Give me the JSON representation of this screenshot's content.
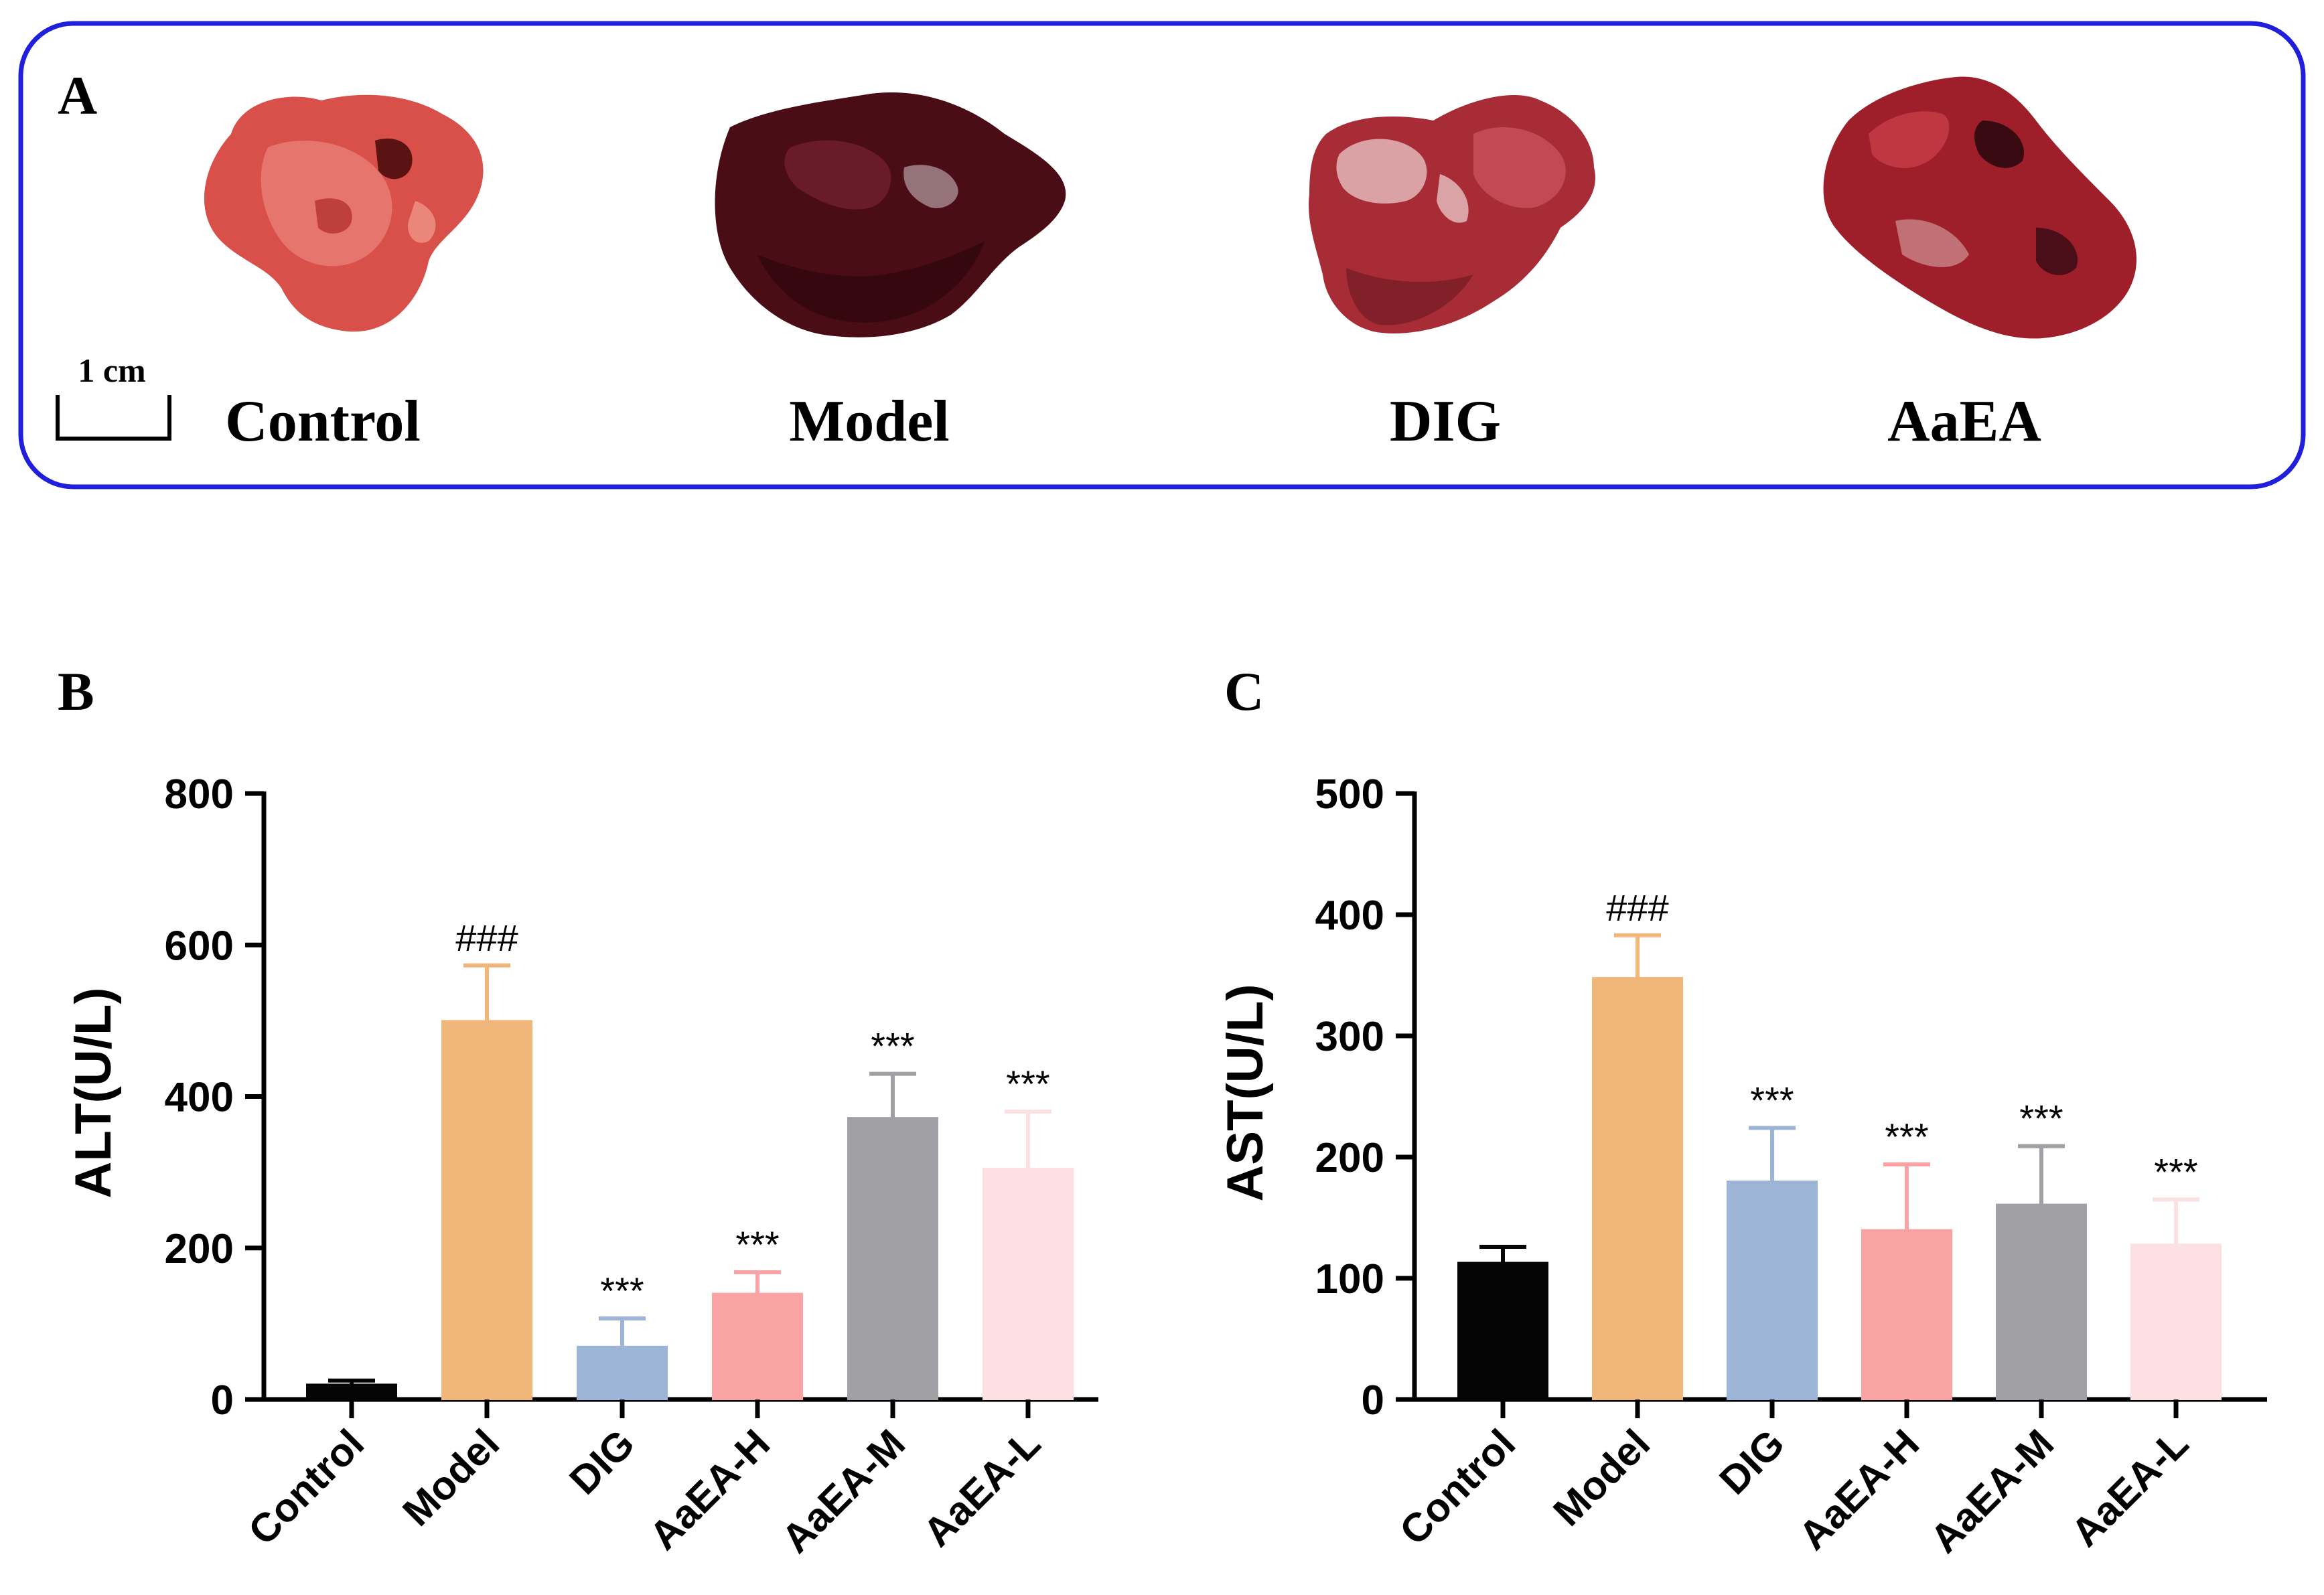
{
  "panel_a": {
    "label": "A",
    "scale_bar_label": "1 cm",
    "samples": [
      {
        "name": "Control",
        "tissue_color": "#d94f4a"
      },
      {
        "name": "Model",
        "tissue_color": "#4a0d16"
      },
      {
        "name": "DIG",
        "tissue_color": "#a82c36"
      },
      {
        "name": "AaEA",
        "tissue_color": "#9e1f2a"
      }
    ],
    "border_color": "#1f1fdc"
  },
  "chart_data": [
    {
      "panel_label": "B",
      "type": "bar",
      "title": "",
      "xlabel": "",
      "ylabel": "ALT(U/L)",
      "ylim": [
        0,
        800
      ],
      "yticks": [
        "0",
        "200",
        "400",
        "600",
        "800"
      ],
      "ytick_values": [
        0,
        200,
        400,
        600,
        800
      ],
      "categories": [
        "Control",
        "Model",
        "DIG",
        "AaEA-H",
        "AaEA-M",
        "AaEA-L"
      ],
      "values": [
        20,
        500,
        70,
        140,
        372,
        305
      ],
      "errors": [
        5,
        73,
        37,
        28,
        58,
        75
      ],
      "annotations": [
        "",
        "###",
        "***",
        "***",
        "***",
        "***"
      ],
      "colors": [
        "#050505",
        "#f0b67a",
        "#9cb5d6",
        "#f9a3a4",
        "#a0a0a5",
        "#fde0e2"
      ]
    },
    {
      "panel_label": "C",
      "type": "bar",
      "title": "",
      "xlabel": "",
      "ylabel": "AST(U/L)",
      "ylim": [
        0,
        500
      ],
      "yticks": [
        "0",
        "100",
        "200",
        "300",
        "400",
        "500"
      ],
      "ytick_values": [
        0,
        100,
        200,
        300,
        400,
        500
      ],
      "categories": [
        "Control",
        "Model",
        "DIG",
        "AaEA-H",
        "AaEA-M",
        "AaEA-L"
      ],
      "values": [
        113,
        348,
        180,
        140,
        161,
        128
      ],
      "errors": [
        13,
        35,
        44,
        54,
        48,
        37
      ],
      "annotations": [
        "",
        "###",
        "***",
        "***",
        "***",
        "***"
      ],
      "colors": [
        "#050505",
        "#f0b67a",
        "#9cb5d6",
        "#f9a3a4",
        "#a0a0a5",
        "#fde0e2"
      ]
    }
  ]
}
